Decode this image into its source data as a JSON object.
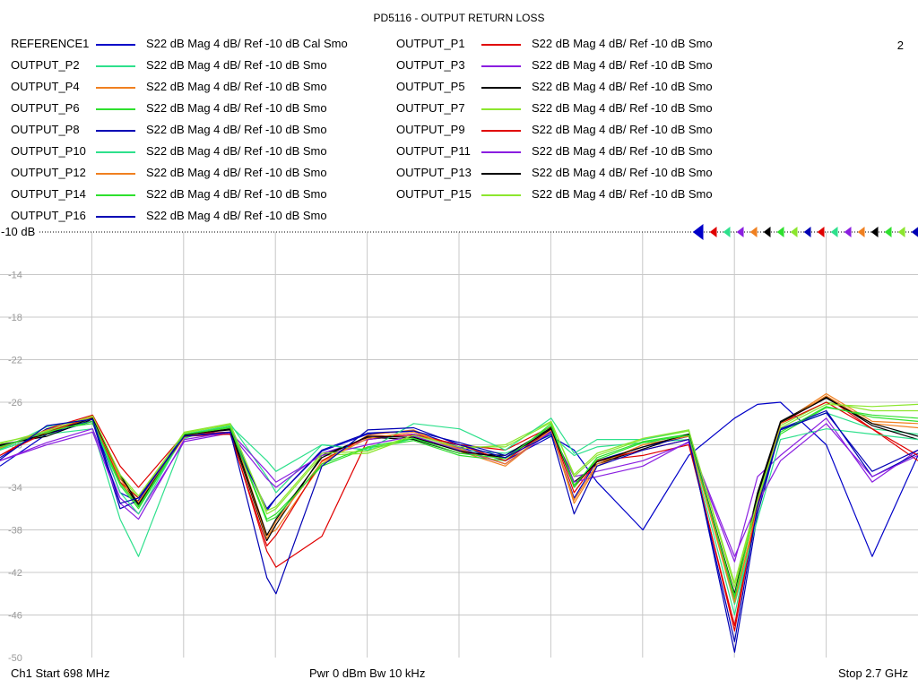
{
  "title": "PD5116 - OUTPUT RETURN LOSS",
  "channel_number": "2",
  "ref_label": "-10 dB",
  "legend": [
    {
      "name": "REFERENCE1",
      "format": "S22  dB Mag  4 dB/ Ref -10 dB  Cal Smo",
      "color": "#0000c8"
    },
    {
      "name": "OUTPUT_P1",
      "format": "S22  dB Mag  4 dB/ Ref -10 dB  Smo",
      "color": "#e00000"
    },
    {
      "name": "OUTPUT_P2",
      "format": "S22  dB Mag  4 dB/ Ref -10 dB  Smo",
      "color": "#2ee08c"
    },
    {
      "name": "OUTPUT_P3",
      "format": "S22  dB Mag  4 dB/ Ref -10 dB  Smo",
      "color": "#8a1ee0"
    },
    {
      "name": "OUTPUT_P4",
      "format": "S22  dB Mag  4 dB/ Ref -10 dB  Smo",
      "color": "#f08020"
    },
    {
      "name": "OUTPUT_P5",
      "format": "S22  dB Mag  4 dB/ Ref -10 dB  Smo",
      "color": "#000000"
    },
    {
      "name": "OUTPUT_P6",
      "format": "S22  dB Mag  4 dB/ Ref -10 dB  Smo",
      "color": "#2ee02e"
    },
    {
      "name": "OUTPUT_P7",
      "format": "S22  dB Mag  4 dB/ Ref -10 dB  Smo",
      "color": "#8ce62e"
    },
    {
      "name": "OUTPUT_P8",
      "format": "S22  dB Mag  4 dB/ Ref -10 dB  Smo",
      "color": "#0000b4"
    },
    {
      "name": "OUTPUT_P9",
      "format": "S22  dB Mag  4 dB/ Ref -10 dB  Smo",
      "color": "#e00000"
    },
    {
      "name": "OUTPUT_P10",
      "format": "S22  dB Mag  4 dB/ Ref -10 dB  Smo",
      "color": "#2ee08c"
    },
    {
      "name": "OUTPUT_P11",
      "format": "S22  dB Mag  4 dB/ Ref -10 dB  Smo",
      "color": "#8a1ee0"
    },
    {
      "name": "OUTPUT_P12",
      "format": "S22  dB Mag  4 dB/ Ref -10 dB  Smo",
      "color": "#f08020"
    },
    {
      "name": "OUTPUT_P13",
      "format": "S22  dB Mag  4 dB/ Ref -10 dB  Smo",
      "color": "#000000"
    },
    {
      "name": "OUTPUT_P14",
      "format": "S22  dB Mag  4 dB/ Ref -10 dB  Smo",
      "color": "#2ee02e"
    },
    {
      "name": "OUTPUT_P15",
      "format": "S22  dB Mag  4 dB/ Ref -10 dB  Smo",
      "color": "#8ce62e"
    },
    {
      "name": "OUTPUT_P16",
      "format": "S22  dB Mag  4 dB/ Ref -10 dB  Smo",
      "color": "#0000b4"
    }
  ],
  "footer": {
    "start": "Ch1  Start  698 MHz",
    "power_bw": "Pwr  0 dBm  Bw  10 kHz",
    "stop": "Stop  2.7 GHz"
  },
  "chart_data": {
    "type": "line",
    "title": "PD5116 - OUTPUT RETURN LOSS",
    "xlabel": "",
    "ylabel": "",
    "x_unit": "MHz",
    "xlim": [
      698,
      2700
    ],
    "ylim": [
      -50,
      -10
    ],
    "y_tick_labels": [
      "-14",
      "-18",
      "-22",
      "-26",
      "-30",
      "-34",
      "-38",
      "-42",
      "-46",
      "-50"
    ],
    "y_ticks": [
      -14,
      -18,
      -22,
      -26,
      -30,
      -34,
      -38,
      -42,
      -46,
      -50
    ],
    "x_grid_divisions": 10,
    "grid": true,
    "x": [
      698,
      800,
      900,
      960,
      1000,
      1100,
      1200,
      1280,
      1300,
      1400,
      1500,
      1600,
      1700,
      1800,
      1900,
      1950,
      2000,
      2100,
      2200,
      2300,
      2350,
      2400,
      2500,
      2600,
      2700
    ],
    "series": [
      {
        "name": "REFERENCE1",
        "values": [
          -32.0,
          -29.0,
          -27.8,
          -34.5,
          -35.4,
          -29.2,
          -28.5,
          -36.2,
          -35.0,
          -30.6,
          -29.0,
          -28.7,
          -30.2,
          -31.5,
          -29.2,
          -30.5,
          -33.5,
          -38.0,
          -31.0,
          -27.5,
          -26.2,
          -26.0,
          -30.0,
          -40.5,
          -31.0
        ]
      },
      {
        "name": "OUTPUT_P1",
        "values": [
          -31.0,
          -28.5,
          -27.2,
          -32.0,
          -34.0,
          -29.0,
          -28.8,
          -40.0,
          -41.5,
          -38.6,
          -29.5,
          -29.0,
          -30.0,
          -30.5,
          -28.3,
          -34.0,
          -31.5,
          -31.0,
          -30.0,
          -47.0,
          -35.0,
          -28.0,
          -25.5,
          -28.5,
          -31.5
        ]
      },
      {
        "name": "OUTPUT_P2",
        "values": [
          -30.5,
          -29.0,
          -28.5,
          -37.0,
          -40.5,
          -29.4,
          -28.0,
          -33.0,
          -34.5,
          -30.0,
          -30.5,
          -29.4,
          -30.5,
          -30.8,
          -29.1,
          -31.0,
          -30.2,
          -29.8,
          -29.5,
          -46.0,
          -36.0,
          -28.5,
          -27.0,
          -28.5,
          -29.0
        ]
      },
      {
        "name": "OUTPUT_P3",
        "values": [
          -31.5,
          -29.8,
          -28.5,
          -35.0,
          -36.5,
          -29.7,
          -28.9,
          -33.2,
          -34.0,
          -30.8,
          -29.5,
          -29.0,
          -30.3,
          -31.8,
          -28.8,
          -33.0,
          -32.5,
          -31.5,
          -29.8,
          -41.0,
          -33.0,
          -31.0,
          -27.5,
          -33.5,
          -30.5
        ]
      },
      {
        "name": "OUTPUT_P4",
        "values": [
          -30.2,
          -28.8,
          -27.5,
          -33.5,
          -35.6,
          -29.3,
          -28.1,
          -38.5,
          -38.0,
          -31.8,
          -29.1,
          -28.6,
          -30.6,
          -32.0,
          -28.6,
          -35.5,
          -32.0,
          -30.0,
          -29.2,
          -45.0,
          -36.0,
          -28.0,
          -25.2,
          -27.8,
          -28.0
        ]
      },
      {
        "name": "OUTPUT_P5",
        "values": [
          -30.0,
          -29.2,
          -27.6,
          -33.0,
          -35.8,
          -29.0,
          -28.6,
          -39.0,
          -37.5,
          -31.0,
          -29.3,
          -29.5,
          -30.8,
          -31.0,
          -28.4,
          -33.5,
          -31.8,
          -30.4,
          -29.0,
          -44.0,
          -34.5,
          -27.8,
          -25.5,
          -28.2,
          -29.5
        ]
      },
      {
        "name": "OUTPUT_P6",
        "values": [
          -30.4,
          -28.6,
          -28.0,
          -33.8,
          -36.0,
          -29.1,
          -28.3,
          -37.0,
          -36.5,
          -32.0,
          -30.3,
          -29.6,
          -31.0,
          -31.5,
          -28.0,
          -34.0,
          -31.2,
          -29.7,
          -29.0,
          -44.5,
          -35.0,
          -29.0,
          -26.5,
          -27.2,
          -27.5
        ]
      },
      {
        "name": "OUTPUT_P7",
        "values": [
          -29.8,
          -28.9,
          -27.4,
          -33.0,
          -35.0,
          -28.8,
          -28.0,
          -36.5,
          -36.0,
          -31.0,
          -30.8,
          -29.2,
          -30.4,
          -30.0,
          -27.8,
          -33.0,
          -31.0,
          -29.5,
          -28.7,
          -43.0,
          -35.0,
          -28.2,
          -26.0,
          -26.8,
          -26.8
        ]
      },
      {
        "name": "OUTPUT_P8",
        "values": [
          -31.2,
          -28.5,
          -27.8,
          -36.0,
          -35.2,
          -29.0,
          -29.0,
          -36.0,
          -35.0,
          -30.5,
          -28.9,
          -28.7,
          -29.8,
          -31.0,
          -28.8,
          -35.0,
          -31.5,
          -30.2,
          -29.2,
          -49.5,
          -36.5,
          -28.5,
          -26.8,
          -33.0,
          -30.8
        ]
      },
      {
        "name": "OUTPUT_P9",
        "values": [
          -31.0,
          -28.8,
          -27.4,
          -33.5,
          -35.0,
          -29.2,
          -29.0,
          -39.5,
          -38.5,
          -31.5,
          -29.2,
          -29.1,
          -30.0,
          -31.5,
          -28.5,
          -34.5,
          -31.5,
          -30.5,
          -29.5,
          -47.5,
          -35.5,
          -28.0,
          -26.0,
          -28.5,
          -31.0
        ]
      },
      {
        "name": "OUTPUT_P10",
        "values": [
          -30.5,
          -28.3,
          -27.5,
          -34.5,
          -36.5,
          -29.0,
          -28.2,
          -31.5,
          -32.5,
          -30.0,
          -30.5,
          -28.0,
          -28.5,
          -30.5,
          -27.5,
          -30.8,
          -29.5,
          -29.5,
          -28.6,
          -45.0,
          -37.0,
          -29.5,
          -28.5,
          -29.0,
          -29.5
        ]
      },
      {
        "name": "OUTPUT_P11",
        "values": [
          -31.5,
          -30.0,
          -28.8,
          -35.5,
          -37.0,
          -29.5,
          -28.8,
          -32.5,
          -33.5,
          -31.0,
          -30.0,
          -29.2,
          -30.5,
          -31.8,
          -28.7,
          -33.5,
          -33.0,
          -32.0,
          -29.7,
          -40.5,
          -35.5,
          -31.5,
          -28.0,
          -33.0,
          -31.0
        ]
      },
      {
        "name": "OUTPUT_P12",
        "values": [
          -30.3,
          -28.6,
          -27.4,
          -33.2,
          -35.4,
          -29.2,
          -28.4,
          -38.8,
          -37.2,
          -31.6,
          -29.4,
          -28.8,
          -30.4,
          -31.8,
          -28.6,
          -35.2,
          -31.8,
          -30.0,
          -29.2,
          -44.8,
          -35.8,
          -28.0,
          -25.4,
          -28.0,
          -28.4
        ]
      },
      {
        "name": "OUTPUT_P13",
        "values": [
          -30.1,
          -29.0,
          -27.5,
          -32.8,
          -35.6,
          -29.1,
          -28.5,
          -38.5,
          -37.0,
          -31.2,
          -29.2,
          -29.3,
          -30.6,
          -31.2,
          -28.5,
          -33.8,
          -31.6,
          -30.2,
          -29.0,
          -44.2,
          -34.8,
          -27.9,
          -25.6,
          -28.0,
          -29.2
        ]
      },
      {
        "name": "OUTPUT_P14",
        "values": [
          -30.2,
          -28.8,
          -27.8,
          -33.6,
          -35.8,
          -29.0,
          -28.4,
          -37.2,
          -36.8,
          -31.8,
          -30.2,
          -29.4,
          -30.8,
          -31.3,
          -28.2,
          -33.8,
          -31.4,
          -29.8,
          -29.1,
          -44.2,
          -35.2,
          -28.8,
          -26.4,
          -27.4,
          -27.8
        ]
      },
      {
        "name": "OUTPUT_P15",
        "values": [
          -29.9,
          -28.7,
          -27.3,
          -32.8,
          -34.8,
          -28.9,
          -28.1,
          -36.2,
          -35.8,
          -30.8,
          -30.6,
          -29.1,
          -30.2,
          -30.2,
          -27.9,
          -32.8,
          -30.8,
          -29.4,
          -28.6,
          -43.4,
          -35.2,
          -28.4,
          -26.2,
          -26.4,
          -26.2
        ]
      },
      {
        "name": "OUTPUT_P16",
        "values": [
          -31.4,
          -28.2,
          -27.6,
          -35.5,
          -35.0,
          -29.2,
          -28.8,
          -42.5,
          -44.0,
          -32.0,
          -28.6,
          -28.4,
          -30.0,
          -31.2,
          -29.0,
          -36.5,
          -32.0,
          -30.5,
          -29.5,
          -48.5,
          -35.8,
          -28.6,
          -27.0,
          -32.5,
          -30.5
        ]
      }
    ]
  }
}
